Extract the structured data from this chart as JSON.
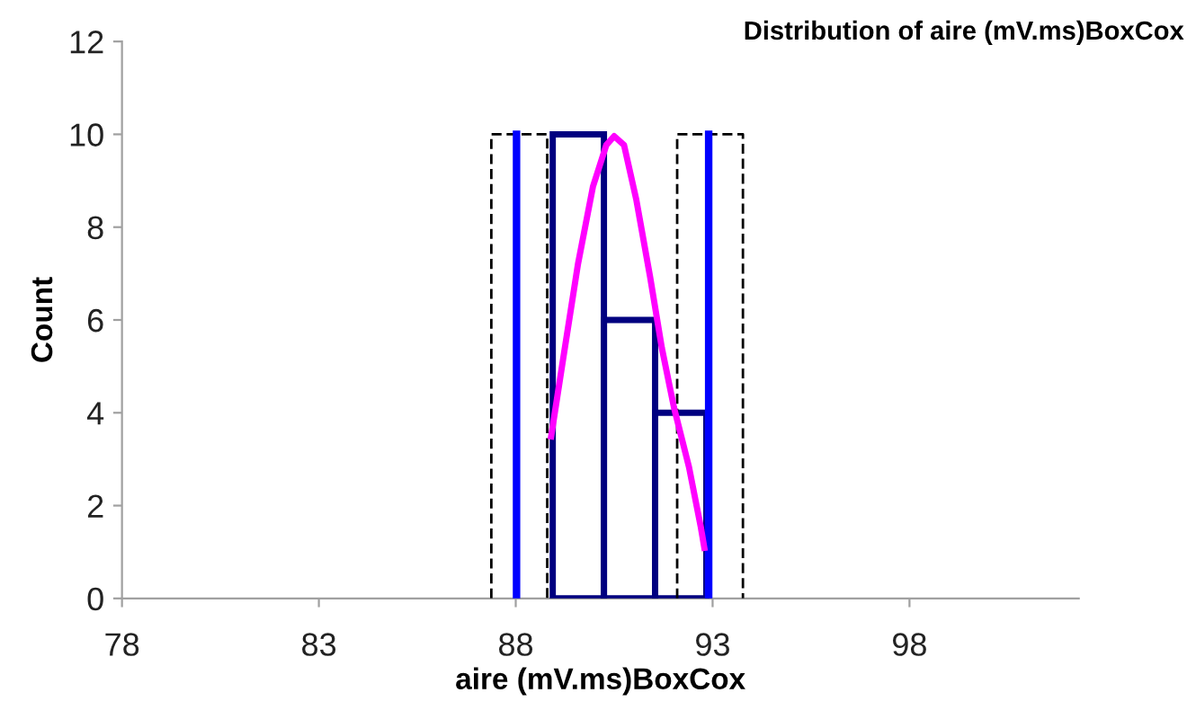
{
  "chart_data": {
    "type": "histogram",
    "title": "Distribution of aire (mV.ms)BoxCox",
    "xlabel": "aire (mV.ms)BoxCox",
    "ylabel": "Count",
    "bins": [
      88.94,
      90.24,
      91.54,
      92.84
    ],
    "values": [
      10,
      6,
      4
    ],
    "color": "#000080",
    "series": [
      {
        "type": "line",
        "x": [
          87.38,
          87.38,
          88.8,
          88.8
        ],
        "values": [
          0,
          10,
          10,
          0
        ],
        "color": "#000000",
        "line_style": "dashed"
      },
      {
        "type": "line",
        "x": [
          92.1,
          92.1,
          93.77,
          93.77
        ],
        "values": [
          0,
          10,
          10,
          0
        ],
        "color": "#000000",
        "line_style": "dashed"
      },
      {
        "type": "line",
        "x": [
          88.02,
          88.02
        ],
        "values": [
          0,
          10
        ],
        "color": "#0000ff",
        "line_style": "solid"
      },
      {
        "type": "line",
        "x": [
          92.9,
          92.9
        ],
        "values": [
          0,
          10
        ],
        "color": "#0000ff",
        "line_style": "solid"
      },
      {
        "type": "line",
        "x": [
          88.9,
          89.2,
          89.58,
          89.96,
          90.3,
          90.5,
          90.75,
          91.06,
          91.41,
          91.71,
          92.02,
          92.4,
          92.7,
          92.79
        ],
        "values": [
          3.49,
          5.14,
          7.2,
          8.87,
          9.77,
          9.96,
          9.77,
          8.6,
          6.94,
          5.4,
          4.11,
          2.83,
          1.54,
          1.09
        ],
        "color": "#ff00ff",
        "line_style": "solid"
      }
    ],
    "xlim": [
      78,
      102.3
    ],
    "xticks": [
      78,
      83,
      88,
      93,
      98
    ],
    "ylim": [
      0,
      12
    ],
    "yticks": [
      0,
      2,
      4,
      6,
      8,
      10,
      12
    ],
    "grid": false
  }
}
